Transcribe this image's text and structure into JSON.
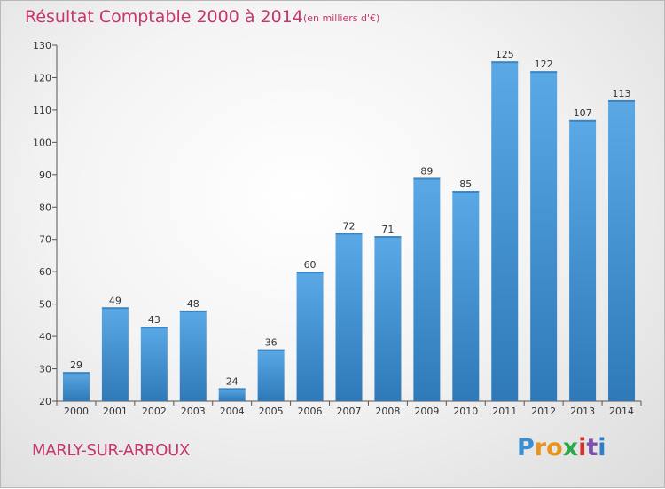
{
  "title": "Résultat Comptable 2000 à 2014",
  "subtitle": "(en milliers d'€)",
  "commune": "MARLY-SUR-ARROUX",
  "logo": {
    "letters": [
      "P",
      "r",
      "o",
      "x",
      "i",
      "t",
      "i"
    ],
    "colors": [
      "#3a8fd0",
      "#e8941c",
      "#e8941c",
      "#2aa84a",
      "#d8332f",
      "#7d4fb0",
      "#2f7fc8"
    ]
  },
  "colors": {
    "bar_top": "#5aa9e6",
    "bar_bottom": "#2f79b8",
    "text_accent": "#c8356e"
  },
  "chart_data": {
    "type": "bar",
    "title": "Résultat Comptable 2000 à 2014",
    "subtitle": "(en milliers d'€)",
    "xlabel": "",
    "ylabel": "",
    "categories": [
      "2000",
      "2001",
      "2002",
      "2003",
      "2004",
      "2005",
      "2006",
      "2007",
      "2008",
      "2009",
      "2010",
      "2011",
      "2012",
      "2013",
      "2014"
    ],
    "values": [
      29,
      49,
      43,
      48,
      24,
      36,
      60,
      72,
      71,
      89,
      85,
      125,
      122,
      107,
      113
    ],
    "ylim": [
      20,
      130
    ],
    "yticks": [
      20,
      30,
      40,
      50,
      60,
      70,
      80,
      90,
      100,
      110,
      120,
      130
    ],
    "grid": false,
    "legend": "none"
  }
}
